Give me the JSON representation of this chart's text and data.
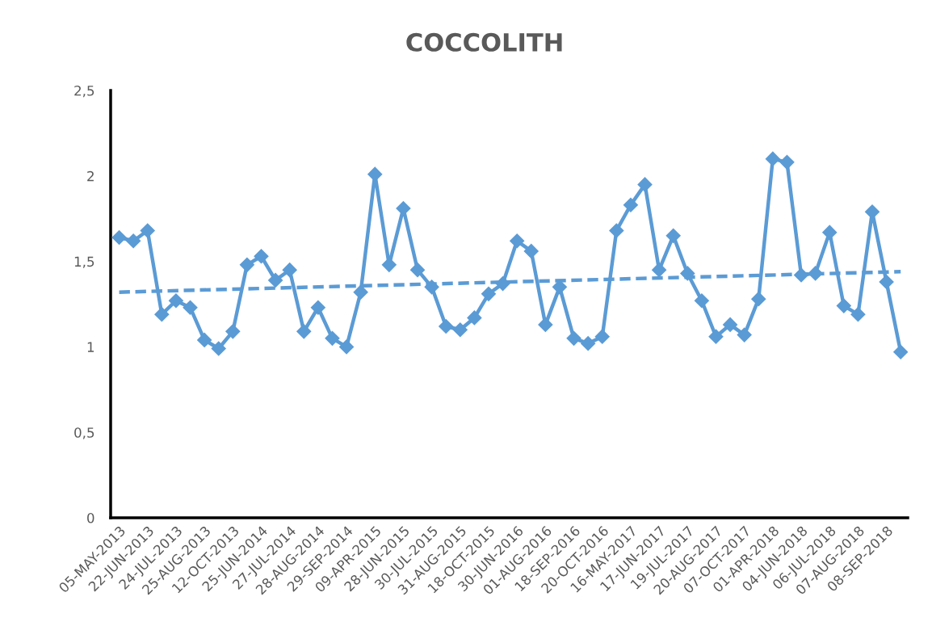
{
  "chart_data": {
    "type": "line",
    "title": "COCCOLITH",
    "categories": [
      "05-MAY-2013",
      null,
      "22-JUN-2013",
      null,
      "24-JUL-2013",
      null,
      "25-AUG-2013",
      null,
      "12-OCT-2013",
      null,
      "25-JUN-2014",
      null,
      "27-JUL-2014",
      null,
      "28-AUG-2014",
      null,
      "29-SEP-2014",
      null,
      "09-APR-2015",
      null,
      "28-JUN-2015",
      null,
      "30-JUL-2015",
      null,
      "31-AUG-2015",
      null,
      "18-OCT-2015",
      null,
      "30-JUN-2016",
      null,
      "01-AUG-2016",
      null,
      "18-SEP-2016",
      null,
      "20-OCT-2016",
      null,
      "16-MAY-2017",
      null,
      "17-JUN-2017",
      null,
      "19-JUL-2017",
      null,
      "20-AUG-2017",
      null,
      "07-OCT-2017",
      null,
      "01-APR-2018",
      null,
      "04-JUN-2018",
      null,
      "06-JUL-2018",
      null,
      "07-AUG-2018",
      null,
      "08-SEP-2018",
      null
    ],
    "series": [
      {
        "color": "#5b9bd5",
        "marker": "diamond",
        "line_style": "solid",
        "values": [
          1.64,
          1.62,
          1.68,
          1.19,
          1.27,
          1.23,
          1.04,
          0.99,
          1.09,
          1.48,
          1.53,
          1.39,
          1.45,
          1.09,
          1.23,
          1.05,
          1.0,
          1.32,
          2.01,
          1.48,
          1.81,
          1.45,
          1.35,
          1.12,
          1.1,
          1.17,
          1.31,
          1.37,
          1.62,
          1.56,
          1.13,
          1.35,
          1.05,
          1.02,
          1.06,
          1.68,
          1.83,
          1.95,
          1.45,
          1.65,
          1.43,
          1.27,
          1.06,
          1.13,
          1.07,
          1.28,
          2.1,
          2.08,
          1.42,
          1.43,
          1.67,
          1.24,
          1.19,
          1.79,
          1.38,
          0.97
        ]
      },
      {
        "type": "line",
        "color": "#5b9bd5",
        "marker": "none",
        "line_style": "dashed",
        "values": [
          1.32,
          null,
          null,
          null,
          null,
          null,
          null,
          null,
          null,
          null,
          null,
          null,
          null,
          null,
          null,
          null,
          null,
          null,
          null,
          null,
          null,
          null,
          null,
          null,
          null,
          null,
          null,
          null,
          null,
          null,
          null,
          null,
          null,
          null,
          null,
          null,
          null,
          null,
          null,
          null,
          null,
          null,
          null,
          null,
          null,
          null,
          null,
          null,
          null,
          null,
          null,
          null,
          null,
          null,
          null,
          1.44
        ]
      }
    ],
    "ylim": [
      0,
      2.5
    ],
    "yticks": [
      0,
      {
        "value": 0.5,
        "label": "0,5"
      },
      1,
      {
        "value": 1.5,
        "label": "1,5"
      },
      2,
      {
        "value": 2.5,
        "label": "2,5"
      }
    ]
  }
}
